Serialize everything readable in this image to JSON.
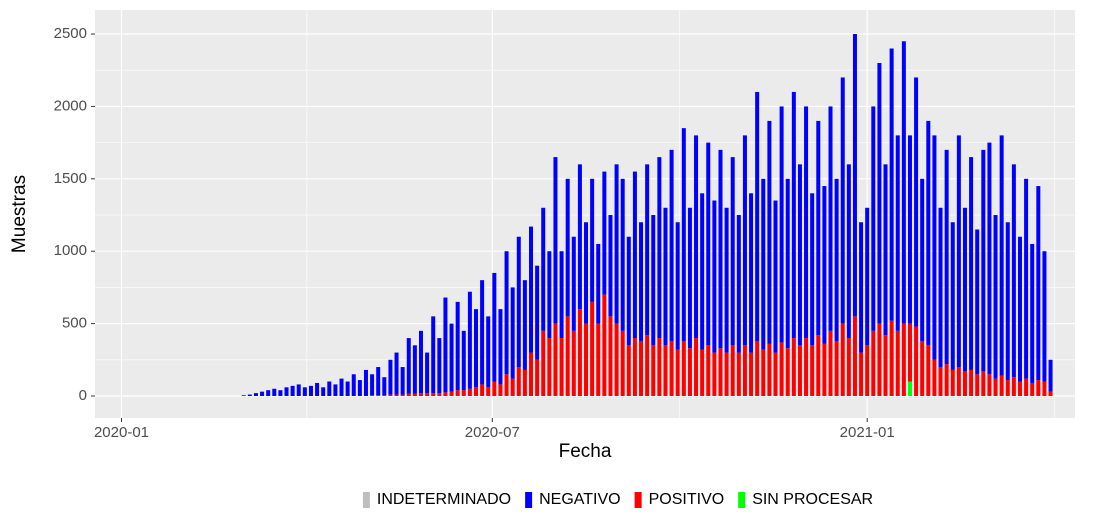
{
  "chart_data": {
    "type": "bar",
    "stacked": true,
    "x_label": "Fecha",
    "y_label": "Muestras",
    "xlim": [
      "2019-12-19",
      "2021-04-13"
    ],
    "xticks": [
      "2020-01",
      "2020-07",
      "2021-01"
    ],
    "ylim": [
      -152,
      2666
    ],
    "yticks": [
      0,
      500,
      1000,
      1500,
      2000,
      2500
    ],
    "grid": true,
    "legend": "bottom",
    "x": [
      "2020-03-01",
      "2020-03-04",
      "2020-03-07",
      "2020-03-10",
      "2020-03-13",
      "2020-03-16",
      "2020-03-19",
      "2020-03-22",
      "2020-03-25",
      "2020-03-28",
      "2020-03-31",
      "2020-04-03",
      "2020-04-06",
      "2020-04-09",
      "2020-04-12",
      "2020-04-15",
      "2020-04-18",
      "2020-04-21",
      "2020-04-24",
      "2020-04-27",
      "2020-04-30",
      "2020-05-03",
      "2020-05-06",
      "2020-05-09",
      "2020-05-12",
      "2020-05-15",
      "2020-05-18",
      "2020-05-21",
      "2020-05-24",
      "2020-05-27",
      "2020-05-30",
      "2020-06-02",
      "2020-06-05",
      "2020-06-08",
      "2020-06-11",
      "2020-06-14",
      "2020-06-17",
      "2020-06-20",
      "2020-06-23",
      "2020-06-26",
      "2020-06-29",
      "2020-07-02",
      "2020-07-05",
      "2020-07-08",
      "2020-07-11",
      "2020-07-14",
      "2020-07-17",
      "2020-07-20",
      "2020-07-23",
      "2020-07-26",
      "2020-07-29",
      "2020-08-01",
      "2020-08-04",
      "2020-08-07",
      "2020-08-10",
      "2020-08-13",
      "2020-08-16",
      "2020-08-19",
      "2020-08-22",
      "2020-08-25",
      "2020-08-28",
      "2020-08-31",
      "2020-09-03",
      "2020-09-06",
      "2020-09-09",
      "2020-09-12",
      "2020-09-15",
      "2020-09-18",
      "2020-09-21",
      "2020-09-24",
      "2020-09-27",
      "2020-09-30",
      "2020-10-03",
      "2020-10-06",
      "2020-10-09",
      "2020-10-12",
      "2020-10-15",
      "2020-10-18",
      "2020-10-21",
      "2020-10-24",
      "2020-10-27",
      "2020-10-30",
      "2020-11-02",
      "2020-11-05",
      "2020-11-08",
      "2020-11-11",
      "2020-11-14",
      "2020-11-17",
      "2020-11-20",
      "2020-11-23",
      "2020-11-26",
      "2020-11-29",
      "2020-12-02",
      "2020-12-05",
      "2020-12-08",
      "2020-12-11",
      "2020-12-14",
      "2020-12-17",
      "2020-12-20",
      "2020-12-23",
      "2020-12-26",
      "2020-12-29",
      "2021-01-01",
      "2021-01-04",
      "2021-01-07",
      "2021-01-10",
      "2021-01-13",
      "2021-01-16",
      "2021-01-19",
      "2021-01-22",
      "2021-01-25",
      "2021-01-28",
      "2021-01-31",
      "2021-02-03",
      "2021-02-06",
      "2021-02-09",
      "2021-02-12",
      "2021-02-15",
      "2021-02-18",
      "2021-02-21",
      "2021-02-24",
      "2021-02-27",
      "2021-03-02",
      "2021-03-05",
      "2021-03-08",
      "2021-03-11",
      "2021-03-14",
      "2021-03-17",
      "2021-03-20",
      "2021-03-23",
      "2021-03-26",
      "2021-03-29",
      "2021-04-01"
    ],
    "series": [
      {
        "name": "INDETERMINADO",
        "color": "#bebebe",
        "values": [
          0,
          0,
          0,
          0,
          0,
          0,
          0,
          0,
          0,
          0,
          0,
          0,
          0,
          0,
          0,
          0,
          0,
          0,
          0,
          0,
          0,
          0,
          0,
          0,
          0,
          0,
          0,
          0,
          0,
          0,
          0,
          0,
          0,
          0,
          0,
          0,
          0,
          0,
          0,
          0,
          0,
          0,
          0,
          0,
          0,
          0,
          0,
          0,
          0,
          0,
          0,
          0,
          0,
          0,
          0,
          0,
          0,
          0,
          0,
          0,
          0,
          0,
          0,
          0,
          0,
          0,
          0,
          0,
          0,
          0,
          0,
          0,
          0,
          0,
          0,
          0,
          0,
          0,
          0,
          0,
          0,
          0,
          0,
          0,
          0,
          0,
          0,
          0,
          0,
          0,
          0,
          0,
          0,
          0,
          0,
          0,
          0,
          0,
          0,
          0,
          0,
          0,
          0,
          0,
          0,
          0,
          0,
          0,
          0,
          0,
          0,
          0,
          0,
          0,
          0,
          0,
          0,
          0,
          0,
          0,
          0,
          0,
          0,
          0,
          0,
          0,
          0,
          0,
          0,
          0,
          0,
          0,
          0
        ]
      },
      {
        "name": "NEGATIVO",
        "color": "#0000ff",
        "values": [
          5,
          10,
          20,
          30,
          40,
          50,
          40,
          60,
          70,
          80,
          60,
          70,
          90,
          60,
          100,
          80,
          120,
          100,
          150,
          110,
          180,
          145,
          195,
          125,
          240,
          290,
          190,
          385,
          335,
          430,
          280,
          530,
          380,
          655,
          470,
          610,
          410,
          670,
          540,
          720,
          490,
          750,
          520,
          850,
          630,
          900,
          620,
          870,
          650,
          850,
          600,
          1150,
          600,
          950,
          650,
          1000,
          700,
          850,
          550,
          850,
          700,
          1100,
          1050,
          750,
          1150,
          820,
          1180,
          900,
          1250,
          950,
          1320,
          880,
          1470,
          970,
          1400,
          1080,
          1400,
          1050,
          1370,
          1000,
          1300,
          950,
          1450,
          1100,
          1720,
          1180,
          1540,
          1050,
          1630,
          1170,
          1700,
          1250,
          1600,
          1050,
          1480,
          1090,
          1550,
          1120,
          1700,
          1200,
          1950,
          900,
          950,
          1550,
          1800,
          1180,
          1880,
          1350,
          1950,
          1300,
          1720,
          1120,
          1550,
          1550,
          1100,
          1480,
          1020,
          1600,
          1130,
          1470,
          1000,
          1530,
          1600,
          1130,
          1660,
          1090,
          1470,
          1000,
          1380,
          960,
          1340,
          900,
          220
        ]
      },
      {
        "name": "POSITIVO",
        "color": "#ff0000",
        "values": [
          0,
          0,
          0,
          0,
          0,
          0,
          0,
          0,
          0,
          0,
          0,
          0,
          0,
          0,
          0,
          0,
          0,
          0,
          0,
          0,
          0,
          5,
          5,
          5,
          10,
          10,
          10,
          15,
          15,
          20,
          20,
          20,
          20,
          25,
          30,
          40,
          40,
          50,
          60,
          80,
          60,
          100,
          80,
          150,
          120,
          200,
          180,
          300,
          250,
          450,
          400,
          500,
          400,
          550,
          450,
          600,
          500,
          650,
          500,
          700,
          550,
          500,
          450,
          350,
          400,
          380,
          420,
          350,
          400,
          350,
          380,
          320,
          380,
          330,
          400,
          320,
          350,
          300,
          330,
          300,
          350,
          300,
          350,
          300,
          380,
          320,
          360,
          300,
          370,
          330,
          400,
          350,
          400,
          350,
          420,
          360,
          450,
          380,
          500,
          400,
          550,
          300,
          350,
          450,
          500,
          420,
          520,
          450,
          500,
          400,
          480,
          380,
          350,
          250,
          200,
          220,
          180,
          200,
          170,
          180,
          150,
          170,
          150,
          120,
          140,
          110,
          130,
          100,
          120,
          90,
          110,
          100,
          30
        ]
      },
      {
        "name": "SIN PROCESAR",
        "color": "#00ff00",
        "values": [
          0,
          0,
          0,
          0,
          0,
          0,
          0,
          0,
          0,
          0,
          0,
          0,
          0,
          0,
          0,
          0,
          0,
          0,
          0,
          0,
          0,
          0,
          0,
          0,
          0,
          0,
          0,
          0,
          0,
          0,
          0,
          0,
          0,
          0,
          0,
          0,
          0,
          0,
          0,
          0,
          0,
          0,
          0,
          0,
          0,
          0,
          0,
          0,
          0,
          0,
          0,
          0,
          0,
          0,
          0,
          0,
          0,
          0,
          0,
          0,
          0,
          0,
          0,
          0,
          0,
          0,
          0,
          0,
          0,
          0,
          0,
          0,
          0,
          0,
          0,
          0,
          0,
          0,
          0,
          0,
          0,
          0,
          0,
          0,
          0,
          0,
          0,
          0,
          0,
          0,
          0,
          0,
          0,
          0,
          0,
          0,
          0,
          0,
          0,
          0,
          0,
          0,
          0,
          0,
          0,
          0,
          0,
          0,
          0,
          100,
          0,
          0,
          0,
          0,
          0,
          0,
          0,
          0,
          0,
          0,
          0,
          0,
          0,
          0,
          0,
          0,
          0,
          0,
          0,
          0,
          0,
          0,
          0
        ]
      }
    ]
  }
}
